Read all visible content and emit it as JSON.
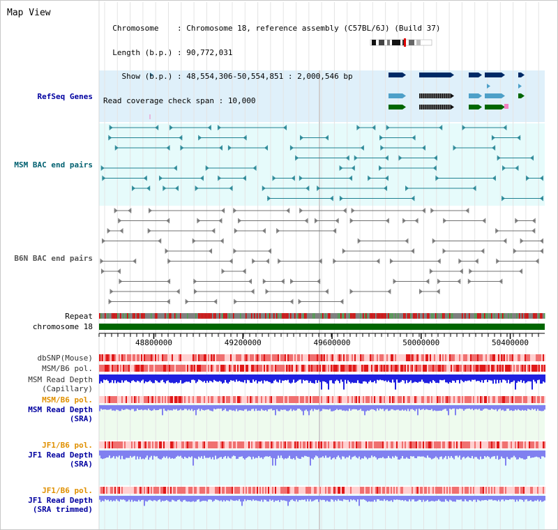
{
  "app": {
    "title": "Map View"
  },
  "info": {
    "chromosome_label": "Chromosome    : ",
    "chromosome_value": "Chromosome 18, reference assembly (C57BL/6J) (Build 37)",
    "length_label": "Length (b.p.) : ",
    "length_value": "90,772,031",
    "show_label": "  Show (b.p.) : ",
    "show_value": "48,554,306-50,554,851 : 2,000,546 bp",
    "span_label": "Read coverage check span : ",
    "span_value": "10,000"
  },
  "tracks": {
    "refseq": "RefSeq Genes",
    "msm_bac": "MSM BAC end pairs",
    "b6n_bac": "B6N BAC end pairs",
    "repeat": "Repeat",
    "chromosome": "chromosome 18",
    "dbsnp": "dbSNP(Mouse)",
    "msm_b6_pol_1": "MSM/B6 pol.",
    "msm_depth_cap_1": "MSM Read Depth",
    "msm_depth_cap_2": "(Capillary)",
    "msm_b6_pol_2": "MSM/B6 pol.",
    "msm_depth_sra_1": "MSM Read Depth",
    "msm_depth_sra_2": "(SRA)",
    "jf1_b6_pol_1": "JF1/B6 pol.",
    "jf1_depth_sra_1": "JF1 Read Depth",
    "jf1_depth_sra_2": "(SRA)",
    "jf1_b6_pol_2": "JF1/B6 pol.",
    "jf1_depth_trim_1": "JF1 Read Depth",
    "jf1_depth_trim_2": "(SRA trimmed)"
  },
  "axis": {
    "ticks": [
      {
        "pos": 48800000,
        "label": "48800000"
      },
      {
        "pos": 49200000,
        "label": "49200000"
      },
      {
        "pos": 49600000,
        "label": "49600000"
      },
      {
        "pos": 50000000,
        "label": "50000000"
      },
      {
        "pos": 50400000,
        "label": "50400000"
      }
    ],
    "start": 48554306,
    "end": 50554851
  },
  "colors": {
    "refseq_bg": "#dff0fa",
    "msm_bg": "#e6fbfb",
    "depth_bg": "#eefbee",
    "jf1_bg": "#e6fbfb",
    "gene_navy": "#002a66",
    "gene_lightblue": "#4ea0c8",
    "gene_green": "#006600",
    "chromosome_bar": "#006600",
    "bac_teal": "#1e8090",
    "bac_gray": "#707070",
    "depth_blue": "#2020e0",
    "depth_lightblue": "#8080f0"
  }
}
